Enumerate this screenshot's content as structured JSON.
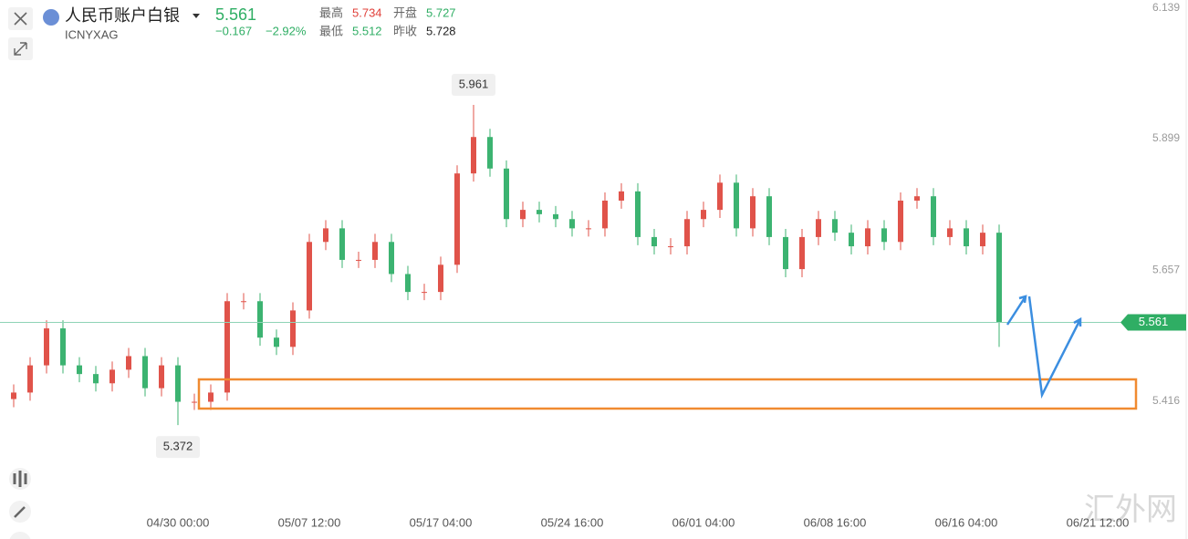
{
  "header": {
    "name": "人民币账户白银",
    "code": "ICNYXAG",
    "price": "5.561",
    "change": "−0.167",
    "change_percent": "−2.92%",
    "stats": [
      {
        "label": "最高",
        "value": "5.734"
      },
      {
        "label": "开盘",
        "value": "5.727"
      },
      {
        "label": "最低",
        "value": "5.512"
      },
      {
        "label": "昨收",
        "value": "5.728"
      }
    ]
  },
  "watermark": "汇外网",
  "chart_data": {
    "type": "candlestick",
    "up_color": "#e0534a",
    "down_color": "#3cb371",
    "grid": false,
    "categories": [
      null,
      null,
      null,
      null,
      null,
      null,
      null,
      null,
      null,
      null,
      "04/30 00:00",
      null,
      null,
      null,
      null,
      null,
      null,
      null,
      "05/07 12:00",
      null,
      null,
      null,
      null,
      null,
      null,
      null,
      "05/17 04:00",
      null,
      null,
      null,
      null,
      null,
      null,
      null,
      "05/24 16:00",
      null,
      null,
      null,
      null,
      null,
      null,
      null,
      "06/01 04:00",
      null,
      null,
      null,
      null,
      null,
      null,
      null,
      "06/08 16:00",
      null,
      null,
      null,
      null,
      null,
      null,
      null,
      "06/16 04:00",
      null,
      null,
      null,
      null,
      null,
      null,
      null,
      "06/21 12:00"
    ],
    "open": [
      5.42,
      5.432,
      5.482,
      5.55,
      5.482,
      5.466,
      5.449,
      5.474,
      5.499,
      5.44,
      5.482,
      5.415,
      5.415,
      5.432,
      5.6,
      5.6,
      5.533,
      5.516,
      5.583,
      5.709,
      5.734,
      5.676,
      5.676,
      5.709,
      5.65,
      5.617,
      5.617,
      5.667,
      5.835,
      5.902,
      5.844,
      5.751,
      5.768,
      5.76,
      5.751,
      5.734,
      5.734,
      5.785,
      5.802,
      5.718,
      5.701,
      5.701,
      5.751,
      5.768,
      5.818,
      5.734,
      5.793,
      5.718,
      5.659,
      5.718,
      5.751,
      5.726,
      5.701,
      5.734,
      5.709,
      5.785,
      5.793,
      5.718,
      5.734,
      5.701,
      5.726,
      null,
      null,
      null,
      null,
      null,
      null
    ],
    "high": [
      5.447,
      5.497,
      5.565,
      5.565,
      5.497,
      5.481,
      5.489,
      5.514,
      5.514,
      5.497,
      5.497,
      5.43,
      5.447,
      5.615,
      5.615,
      5.615,
      5.548,
      5.598,
      5.724,
      5.749,
      5.749,
      5.691,
      5.724,
      5.724,
      5.665,
      5.632,
      5.682,
      5.85,
      5.961,
      5.917,
      5.859,
      5.783,
      5.783,
      5.775,
      5.766,
      5.749,
      5.8,
      5.817,
      5.817,
      5.733,
      5.716,
      5.766,
      5.783,
      5.833,
      5.833,
      5.808,
      5.808,
      5.733,
      5.733,
      5.766,
      5.766,
      5.741,
      5.749,
      5.749,
      5.8,
      5.808,
      5.808,
      5.749,
      5.749,
      5.741,
      5.741,
      null,
      null,
      null,
      null,
      null,
      null
    ],
    "low": [
      5.405,
      5.417,
      5.467,
      5.467,
      5.451,
      5.434,
      5.434,
      5.459,
      5.425,
      5.425,
      5.372,
      5.4,
      5.4,
      5.417,
      5.585,
      5.518,
      5.501,
      5.501,
      5.568,
      5.694,
      5.661,
      5.661,
      5.661,
      5.635,
      5.602,
      5.602,
      5.602,
      5.652,
      5.82,
      5.829,
      5.736,
      5.736,
      5.745,
      5.736,
      5.719,
      5.719,
      5.719,
      5.77,
      5.703,
      5.686,
      5.686,
      5.686,
      5.736,
      5.753,
      5.719,
      5.719,
      5.703,
      5.644,
      5.644,
      5.703,
      5.711,
      5.686,
      5.686,
      5.694,
      5.694,
      5.77,
      5.703,
      5.703,
      5.686,
      5.686,
      5.516,
      null,
      null,
      null,
      null,
      null,
      null
    ],
    "close": [
      5.432,
      5.482,
      5.55,
      5.482,
      5.466,
      5.449,
      5.474,
      5.499,
      5.44,
      5.482,
      5.415,
      5.415,
      5.432,
      5.6,
      5.6,
      5.533,
      5.516,
      5.583,
      5.709,
      5.734,
      5.676,
      5.676,
      5.709,
      5.65,
      5.617,
      5.617,
      5.667,
      5.835,
      5.902,
      5.844,
      5.751,
      5.768,
      5.76,
      5.751,
      5.734,
      5.734,
      5.785,
      5.802,
      5.718,
      5.701,
      5.701,
      5.751,
      5.768,
      5.818,
      5.734,
      5.793,
      5.718,
      5.659,
      5.718,
      5.751,
      5.726,
      5.701,
      5.734,
      5.709,
      5.785,
      5.793,
      5.718,
      5.734,
      5.701,
      5.726,
      5.561,
      null,
      null,
      null,
      null,
      null,
      null
    ],
    "ylim": [
      5.223,
      6.154
    ],
    "yticks": [
      5.416,
      5.657,
      5.899,
      6.139
    ],
    "annotations": [
      {
        "text": "5.961",
        "index": 28
      },
      {
        "text": "5.372",
        "index": 10
      }
    ]
  }
}
